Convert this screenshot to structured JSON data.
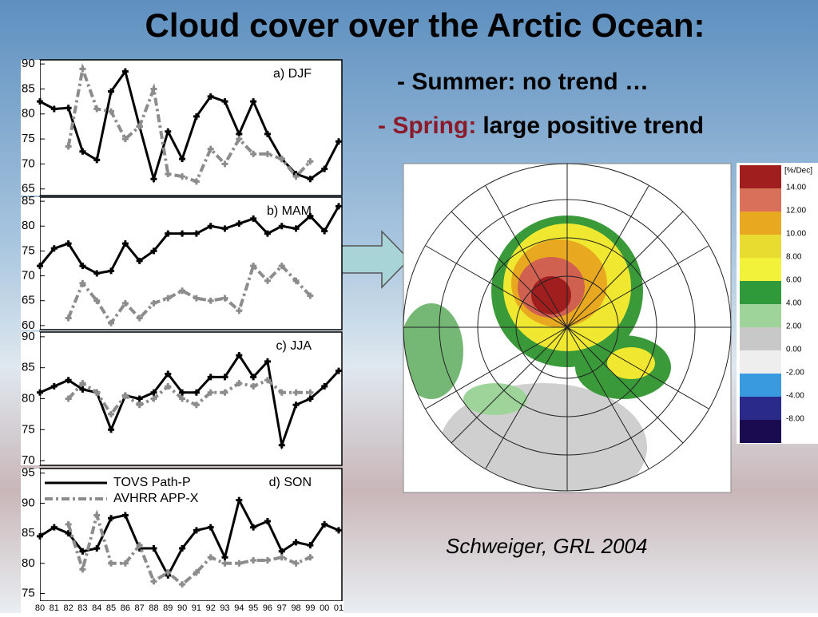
{
  "title": "Cloud cover over the Arctic Ocean:",
  "bullets": [
    {
      "text": "- Summer: no trend …"
    },
    {
      "lead": "- Spring:",
      "text": "large positive trend"
    }
  ],
  "citation": "Schweiger, GRL 2004",
  "map": {
    "unit": "[%/Dec]",
    "legend": [
      {
        "label": "14.00",
        "color": "#a01e1e"
      },
      {
        "label": "12.00",
        "color": "#d9705a"
      },
      {
        "label": "10.00",
        "color": "#e8a820"
      },
      {
        "label": "8.00",
        "color": "#e8dc30"
      },
      {
        "label": "6.00",
        "color": "#f2f23a"
      },
      {
        "label": "4.00",
        "color": "#2e9a3a"
      },
      {
        "label": "2.00",
        "color": "#9ed49a"
      },
      {
        "label": "0.00",
        "color": "#c8c8c8"
      },
      {
        "label": "-2.00",
        "color": "#eeeeee"
      },
      {
        "label": "-4.00",
        "color": "#3a9ae0"
      },
      {
        "label": "-8.00",
        "color": "#2a2a8a"
      },
      {
        "label": null,
        "color": "#1a0a50"
      }
    ]
  },
  "chart_data": [
    {
      "type": "line",
      "title": "a) DJF",
      "ylim": [
        64,
        90.5
      ],
      "yticks": [
        65,
        70,
        75,
        80,
        85,
        90
      ],
      "series": [
        {
          "color": "#000000",
          "values": [
            82.5,
            81,
            81.2,
            72.5,
            70.8,
            84.5,
            88.5,
            77.5,
            67,
            76.5,
            71,
            79.5,
            83.5,
            82.5,
            76,
            82.5,
            76,
            71,
            68,
            67,
            69,
            74.5
          ]
        },
        {
          "color": "#8c8c8c",
          "values": [
            null,
            null,
            73.5,
            89,
            81,
            80.5,
            75,
            77.5,
            85,
            68,
            67.5,
            66.5,
            73,
            70,
            75,
            72,
            72,
            71,
            67.5,
            70.5,
            null,
            null
          ]
        }
      ]
    },
    {
      "type": "line",
      "title": "b) MAM",
      "ylim": [
        59.5,
        85.5
      ],
      "yticks": [
        60,
        65,
        70,
        75,
        80,
        85
      ],
      "series": [
        {
          "color": "#000000",
          "values": [
            72,
            75.5,
            76.5,
            72,
            70.5,
            71,
            76.5,
            73,
            75,
            78.5,
            78.5,
            78.5,
            80,
            79.5,
            80.5,
            81.5,
            78.5,
            80,
            79.5,
            82,
            79,
            84
          ]
        },
        {
          "color": "#8c8c8c",
          "values": [
            null,
            null,
            61.5,
            68.5,
            65,
            60.5,
            64.5,
            61.5,
            64.5,
            65.5,
            67,
            65.5,
            65,
            65.5,
            63,
            72,
            69,
            72,
            69,
            66,
            null,
            null
          ]
        }
      ]
    },
    {
      "type": "line",
      "title": "c) JJA",
      "ylim": [
        69.5,
        90.5
      ],
      "yticks": [
        70,
        75,
        80,
        85,
        90
      ],
      "series": [
        {
          "color": "#000000",
          "values": [
            81,
            82,
            83,
            81.5,
            81,
            75,
            80.5,
            80,
            81,
            84,
            81,
            81,
            83.5,
            83.5,
            87,
            83.5,
            86,
            72.5,
            79,
            80,
            82,
            84.5
          ]
        },
        {
          "color": "#8c8c8c",
          "values": [
            null,
            null,
            80,
            82.5,
            81,
            77.5,
            80.5,
            79,
            80,
            82,
            80,
            79,
            81,
            81,
            82.5,
            82,
            83,
            81,
            81,
            81,
            null,
            null
          ]
        }
      ]
    },
    {
      "type": "line",
      "title": "d) SON",
      "ylim": [
        74,
        95.5
      ],
      "yticks": [
        75,
        80,
        85,
        90,
        95
      ],
      "categories": [
        "80",
        "81",
        "82",
        "83",
        "84",
        "85",
        "86",
        "87",
        "88",
        "89",
        "90",
        "91",
        "92",
        "93",
        "94",
        "95",
        "96",
        "97",
        "98",
        "99",
        "00",
        "01"
      ],
      "series": [
        {
          "name": "TOVS Path-P",
          "color": "#000000",
          "values": [
            84.5,
            86,
            85,
            82,
            82.5,
            87.5,
            88,
            82.5,
            82.5,
            78,
            82.5,
            85.5,
            86,
            81,
            90.5,
            86,
            87,
            82,
            83.5,
            83,
            86.5,
            85.5
          ]
        },
        {
          "name": "AVHRR APP-X",
          "color": "#8c8c8c",
          "values": [
            null,
            null,
            86.5,
            79,
            88,
            80,
            80,
            83,
            77,
            78.5,
            76.5,
            78.5,
            81,
            80,
            80,
            80.5,
            80.5,
            81,
            80,
            81,
            null,
            null
          ]
        }
      ]
    }
  ]
}
